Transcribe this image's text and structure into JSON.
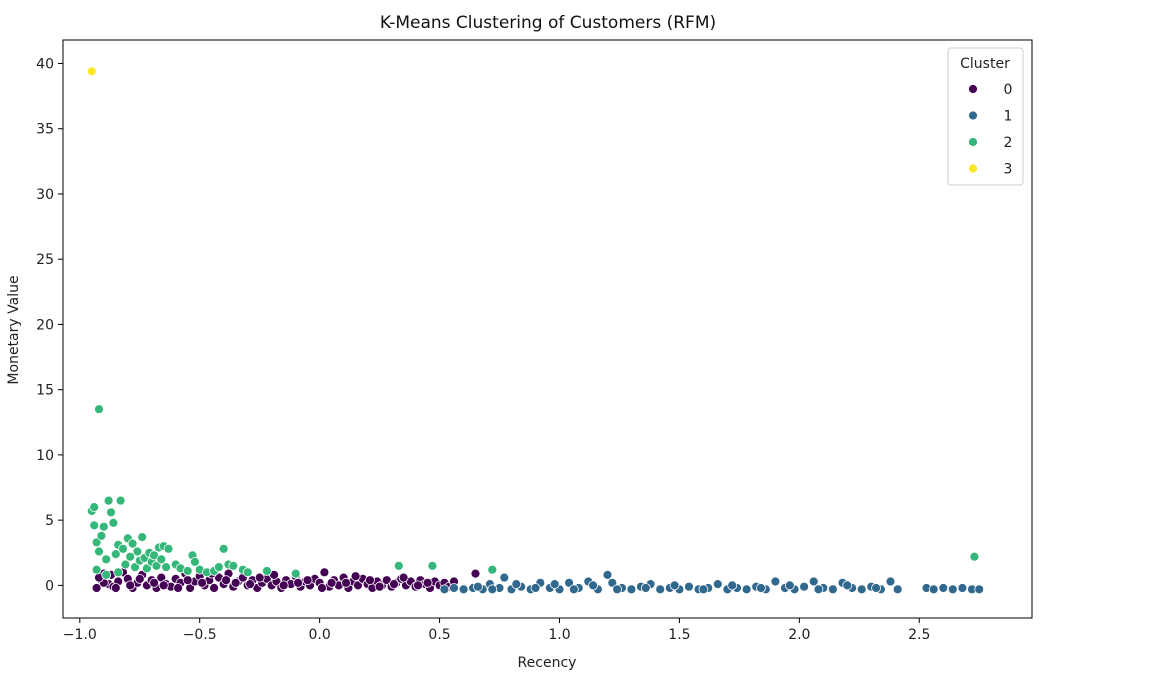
{
  "chart_data": {
    "type": "scatter",
    "title": "K-Means Clustering of Customers (RFM)",
    "xlabel": "Recency",
    "ylabel": "Monetary Value",
    "xlim": [
      -1.07,
      2.97
    ],
    "ylim": [
      -2.5,
      41.8
    ],
    "xticks": [
      -1.0,
      -0.5,
      0.0,
      0.5,
      1.0,
      1.5,
      2.0,
      2.5
    ],
    "xtick_labels": [
      "−1.0",
      "−0.5",
      "0.0",
      "0.5",
      "1.0",
      "1.5",
      "2.0",
      "2.5"
    ],
    "yticks": [
      0,
      5,
      10,
      15,
      20,
      25,
      30,
      35,
      40
    ],
    "ytick_labels": [
      "0",
      "5",
      "10",
      "15",
      "20",
      "25",
      "30",
      "35",
      "40"
    ],
    "grid": false,
    "legend": {
      "title": "Cluster",
      "placement": "top-right"
    },
    "series": [
      {
        "name": "0",
        "color": "#440154",
        "points": [
          [
            -0.93,
            -0.2
          ],
          [
            -0.91,
            0.4
          ],
          [
            -0.9,
            0.9
          ],
          [
            -0.88,
            0.1
          ],
          [
            -0.86,
            -0.1
          ],
          [
            -0.84,
            0.3
          ],
          [
            -0.82,
            1.0
          ],
          [
            -0.8,
            0.5
          ],
          [
            -0.78,
            -0.2
          ],
          [
            -0.76,
            0.2
          ],
          [
            -0.74,
            0.8
          ],
          [
            -0.72,
            0.0
          ],
          [
            -0.7,
            0.4
          ],
          [
            -0.68,
            -0.2
          ],
          [
            -0.66,
            0.6
          ],
          [
            -0.64,
            0.1
          ],
          [
            -0.62,
            -0.1
          ],
          [
            -0.6,
            0.5
          ],
          [
            -0.58,
            0.2
          ],
          [
            -0.56,
            0.9
          ],
          [
            -0.54,
            -0.2
          ],
          [
            -0.52,
            0.3
          ],
          [
            -0.5,
            0.7
          ],
          [
            -0.48,
            0.0
          ],
          [
            -0.46,
            0.4
          ],
          [
            -0.44,
            -0.2
          ],
          [
            -0.42,
            0.6
          ],
          [
            -0.4,
            0.1
          ],
          [
            -0.38,
            0.9
          ],
          [
            -0.36,
            -0.1
          ],
          [
            -0.34,
            0.3
          ],
          [
            -0.32,
            0.6
          ],
          [
            -0.3,
            0.0
          ],
          [
            -0.28,
            0.4
          ],
          [
            -0.26,
            -0.2
          ],
          [
            -0.24,
            0.2
          ],
          [
            -0.22,
            0.5
          ],
          [
            -0.2,
            0.0
          ],
          [
            -0.18,
            0.3
          ],
          [
            -0.16,
            -0.2
          ],
          [
            -0.14,
            0.4
          ],
          [
            -0.12,
            0.1
          ],
          [
            -0.1,
            0.7
          ],
          [
            -0.08,
            -0.1
          ],
          [
            -0.06,
            0.3
          ],
          [
            -0.04,
            0.0
          ],
          [
            -0.02,
            0.5
          ],
          [
            0.0,
            0.2
          ],
          [
            0.02,
            1.0
          ],
          [
            0.04,
            -0.1
          ],
          [
            0.06,
            0.4
          ],
          [
            0.08,
            0.0
          ],
          [
            0.1,
            0.6
          ],
          [
            0.12,
            -0.2
          ],
          [
            0.14,
            0.3
          ],
          [
            0.16,
            0.0
          ],
          [
            0.18,
            0.5
          ],
          [
            0.2,
            0.1
          ],
          [
            0.22,
            -0.2
          ],
          [
            0.24,
            0.3
          ],
          [
            0.26,
            0.0
          ],
          [
            0.28,
            0.4
          ],
          [
            0.3,
            -0.1
          ],
          [
            0.32,
            0.2
          ],
          [
            0.34,
            0.5
          ],
          [
            0.36,
            0.0
          ],
          [
            0.38,
            0.3
          ],
          [
            0.4,
            -0.1
          ],
          [
            0.42,
            0.4
          ],
          [
            0.44,
            0.1
          ],
          [
            0.46,
            -0.2
          ],
          [
            0.48,
            0.3
          ],
          [
            0.5,
            0.0
          ],
          [
            0.52,
            0.2
          ],
          [
            0.54,
            -0.1
          ],
          [
            0.56,
            0.3
          ],
          [
            0.65,
            0.9
          ],
          [
            -0.9,
            0.2
          ],
          [
            -0.85,
            -0.2
          ],
          [
            -0.75,
            0.5
          ],
          [
            -0.65,
            0.0
          ],
          [
            -0.55,
            0.4
          ],
          [
            -0.45,
            0.9
          ],
          [
            -0.35,
            0.2
          ],
          [
            -0.25,
            0.6
          ],
          [
            -0.15,
            0.0
          ],
          [
            -0.05,
            0.4
          ],
          [
            0.05,
            0.2
          ],
          [
            0.15,
            0.7
          ],
          [
            0.25,
            -0.1
          ],
          [
            0.35,
            0.6
          ],
          [
            0.45,
            0.2
          ],
          [
            -0.92,
            0.6
          ],
          [
            -0.87,
            0.8
          ],
          [
            -0.79,
            0.0
          ],
          [
            -0.69,
            0.2
          ],
          [
            -0.59,
            -0.2
          ],
          [
            -0.49,
            0.2
          ],
          [
            -0.39,
            0.4
          ],
          [
            -0.29,
            0.1
          ],
          [
            -0.19,
            0.8
          ],
          [
            -0.09,
            0.2
          ],
          [
            0.01,
            -0.2
          ],
          [
            0.11,
            0.2
          ],
          [
            0.21,
            0.4
          ],
          [
            0.31,
            0.1
          ],
          [
            0.41,
            0.0
          ]
        ]
      },
      {
        "name": "1",
        "color": "#31688e",
        "points": [
          [
            0.52,
            -0.3
          ],
          [
            0.56,
            -0.2
          ],
          [
            0.6,
            -0.3
          ],
          [
            0.64,
            -0.2
          ],
          [
            0.68,
            -0.3
          ],
          [
            0.71,
            0.1
          ],
          [
            0.75,
            -0.2
          ],
          [
            0.77,
            0.6
          ],
          [
            0.8,
            -0.3
          ],
          [
            0.84,
            -0.1
          ],
          [
            0.88,
            -0.3
          ],
          [
            0.92,
            0.2
          ],
          [
            0.96,
            -0.2
          ],
          [
            1.0,
            -0.3
          ],
          [
            1.04,
            0.2
          ],
          [
            1.08,
            -0.2
          ],
          [
            1.12,
            0.3
          ],
          [
            1.16,
            -0.3
          ],
          [
            1.2,
            0.8
          ],
          [
            1.22,
            0.2
          ],
          [
            1.26,
            -0.2
          ],
          [
            1.3,
            -0.3
          ],
          [
            1.34,
            -0.1
          ],
          [
            1.38,
            0.1
          ],
          [
            1.42,
            -0.3
          ],
          [
            1.46,
            -0.2
          ],
          [
            1.5,
            -0.3
          ],
          [
            1.54,
            -0.1
          ],
          [
            1.58,
            -0.3
          ],
          [
            1.62,
            -0.2
          ],
          [
            1.66,
            0.1
          ],
          [
            1.7,
            -0.3
          ],
          [
            1.74,
            -0.2
          ],
          [
            1.78,
            -0.3
          ],
          [
            1.82,
            -0.1
          ],
          [
            1.86,
            -0.3
          ],
          [
            1.9,
            0.3
          ],
          [
            1.94,
            -0.2
          ],
          [
            1.98,
            -0.3
          ],
          [
            2.02,
            -0.1
          ],
          [
            2.06,
            0.3
          ],
          [
            2.1,
            -0.2
          ],
          [
            2.14,
            -0.3
          ],
          [
            2.18,
            0.2
          ],
          [
            2.22,
            -0.2
          ],
          [
            2.26,
            -0.3
          ],
          [
            2.3,
            -0.1
          ],
          [
            2.34,
            -0.3
          ],
          [
            2.38,
            0.3
          ],
          [
            2.41,
            -0.3
          ],
          [
            2.53,
            -0.2
          ],
          [
            2.56,
            -0.3
          ],
          [
            2.6,
            -0.2
          ],
          [
            2.64,
            -0.3
          ],
          [
            2.68,
            -0.2
          ],
          [
            2.72,
            -0.3
          ],
          [
            2.75,
            -0.3
          ],
          [
            0.66,
            -0.1
          ],
          [
            0.72,
            -0.3
          ],
          [
            0.82,
            0.1
          ],
          [
            0.9,
            -0.2
          ],
          [
            0.98,
            0.1
          ],
          [
            1.06,
            -0.3
          ],
          [
            1.14,
            0.0
          ],
          [
            1.24,
            -0.3
          ],
          [
            1.36,
            -0.2
          ],
          [
            1.48,
            0.0
          ],
          [
            1.6,
            -0.3
          ],
          [
            1.72,
            0.0
          ],
          [
            1.84,
            -0.2
          ],
          [
            1.96,
            0.0
          ],
          [
            2.08,
            -0.3
          ],
          [
            2.2,
            0.0
          ],
          [
            2.32,
            -0.2
          ]
        ]
      },
      {
        "name": "2",
        "color": "#35b779",
        "points": [
          [
            -0.95,
            5.7
          ],
          [
            -0.94,
            6.0
          ],
          [
            -0.94,
            4.6
          ],
          [
            -0.93,
            3.3
          ],
          [
            -0.92,
            2.6
          ],
          [
            -0.91,
            3.8
          ],
          [
            -0.9,
            4.5
          ],
          [
            -0.89,
            2.0
          ],
          [
            -0.88,
            6.5
          ],
          [
            -0.87,
            5.6
          ],
          [
            -0.86,
            4.8
          ],
          [
            -0.85,
            2.4
          ],
          [
            -0.84,
            3.1
          ],
          [
            -0.83,
            6.5
          ],
          [
            -0.82,
            2.8
          ],
          [
            -0.81,
            1.6
          ],
          [
            -0.8,
            3.6
          ],
          [
            -0.79,
            2.2
          ],
          [
            -0.78,
            3.2
          ],
          [
            -0.77,
            1.4
          ],
          [
            -0.76,
            2.6
          ],
          [
            -0.75,
            1.9
          ],
          [
            -0.74,
            3.7
          ],
          [
            -0.73,
            2.1
          ],
          [
            -0.72,
            1.3
          ],
          [
            -0.71,
            2.5
          ],
          [
            -0.7,
            1.8
          ],
          [
            -0.69,
            2.3
          ],
          [
            -0.68,
            1.5
          ],
          [
            -0.67,
            2.9
          ],
          [
            -0.66,
            2.0
          ],
          [
            -0.65,
            3.0
          ],
          [
            -0.64,
            1.4
          ],
          [
            -0.63,
            2.8
          ],
          [
            -0.6,
            1.6
          ],
          [
            -0.58,
            1.3
          ],
          [
            -0.55,
            1.1
          ],
          [
            -0.53,
            2.3
          ],
          [
            -0.52,
            1.8
          ],
          [
            -0.5,
            1.2
          ],
          [
            -0.47,
            1.0
          ],
          [
            -0.44,
            1.1
          ],
          [
            -0.42,
            1.4
          ],
          [
            -0.4,
            2.8
          ],
          [
            -0.38,
            1.6
          ],
          [
            -0.36,
            1.5
          ],
          [
            -0.32,
            1.2
          ],
          [
            -0.3,
            1.0
          ],
          [
            -0.22,
            1.1
          ],
          [
            -0.1,
            0.9
          ],
          [
            0.33,
            1.5
          ],
          [
            0.47,
            1.5
          ],
          [
            0.72,
            1.2
          ],
          [
            2.73,
            2.2
          ],
          [
            -0.92,
            13.5
          ],
          [
            -0.93,
            1.2
          ],
          [
            -0.89,
            0.8
          ],
          [
            -0.84,
            1.0
          ]
        ]
      },
      {
        "name": "3",
        "color": "#fde725",
        "points": [
          [
            -0.95,
            39.4
          ]
        ]
      }
    ]
  }
}
